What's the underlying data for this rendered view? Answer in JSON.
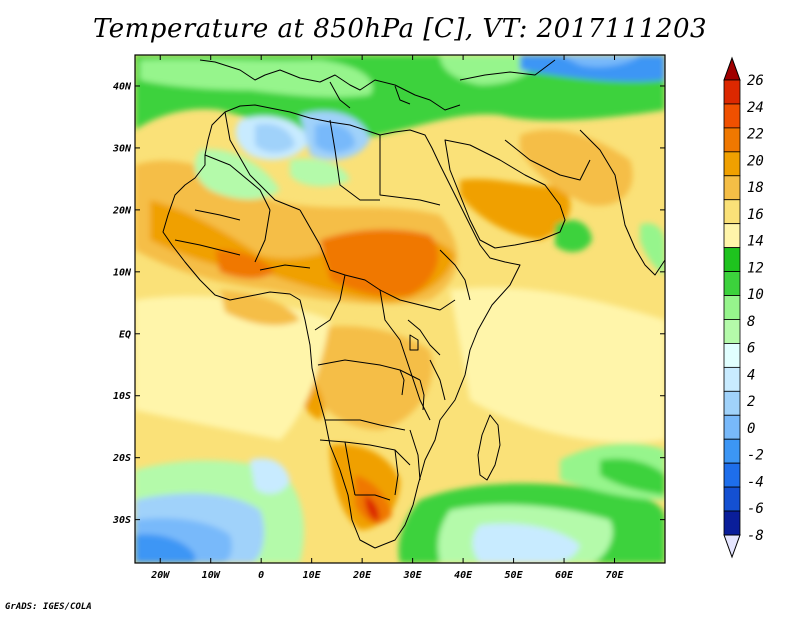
{
  "title": "Temperature at 850hPa [C], VT: 2017111203",
  "credit": "GrADS: IGES/COLA",
  "map": {
    "projection": "lat-lon",
    "lon_range": [
      -25,
      80
    ],
    "lat_range": [
      -37,
      45
    ],
    "lon_ticks": [
      {
        "value": -20,
        "label": "20W"
      },
      {
        "value": -10,
        "label": "10W"
      },
      {
        "value": 0,
        "label": "0"
      },
      {
        "value": 10,
        "label": "10E"
      },
      {
        "value": 20,
        "label": "20E"
      },
      {
        "value": 30,
        "label": "30E"
      },
      {
        "value": 40,
        "label": "40E"
      },
      {
        "value": 50,
        "label": "50E"
      },
      {
        "value": 60,
        "label": "60E"
      },
      {
        "value": 70,
        "label": "70E"
      }
    ],
    "lat_ticks": [
      {
        "value": 40,
        "label": "40N"
      },
      {
        "value": 30,
        "label": "30N"
      },
      {
        "value": 20,
        "label": "20N"
      },
      {
        "value": 10,
        "label": "10N"
      },
      {
        "value": 0,
        "label": "EQ"
      },
      {
        "value": -10,
        "label": "10S"
      },
      {
        "value": -20,
        "label": "20S"
      },
      {
        "value": -30,
        "label": "30S"
      }
    ]
  },
  "colorbar": {
    "labels": [
      "26",
      "24",
      "22",
      "20",
      "18",
      "16",
      "14",
      "12",
      "10",
      "8",
      "6",
      "4",
      "2",
      "0",
      "-2",
      "-4",
      "-6",
      "-8"
    ],
    "colors": [
      "#a00000",
      "#dc2800",
      "#f05000",
      "#f07800",
      "#f0a000",
      "#f5be46",
      "#fae178",
      "#fff5aa",
      "#1ec31e",
      "#3cd23c",
      "#96f58c",
      "#b4faaa",
      "#e1ffff",
      "#c8ebff",
      "#a0d2fa",
      "#78b9fa",
      "#3c96f5",
      "#1e6eeb",
      "#1450d2",
      "#0a1e9a",
      "#e6e6ff"
    ]
  }
}
